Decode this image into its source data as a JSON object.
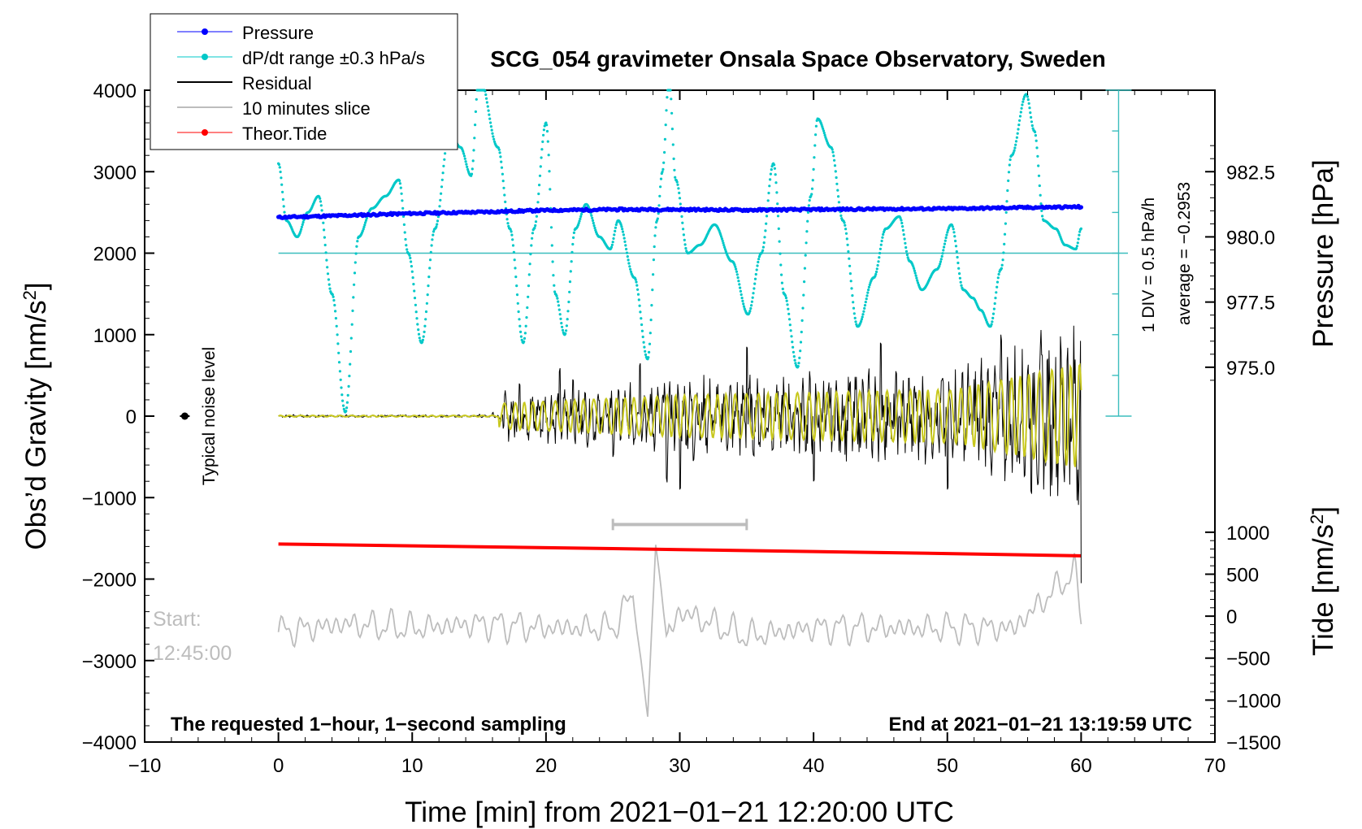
{
  "chart_data": {
    "type": "line",
    "title": "SCG_054 gravimeter Onsala Space Observatory, Sweden",
    "xlabel": "Time [min] from 2021−01−21 12:20:00 UTC",
    "ylabel_left": "Obs’d Gravity [nm/s",
    "ylabel_left_sup": "2",
    "ylabel_left_end": "]",
    "ylabel_right_pressure": "Pressure [hPa]",
    "ylabel_right_tide": "Tide [nm/s",
    "ylabel_right_tide_sup": "2",
    "ylabel_right_tide_end": "]",
    "xlim": [
      -10,
      70
    ],
    "ylim": [
      -4000,
      4000
    ],
    "x_ticks": [
      "−10",
      "0",
      "10",
      "20",
      "30",
      "40",
      "50",
      "60",
      "70"
    ],
    "x_tick_values": [
      -10,
      0,
      10,
      20,
      30,
      40,
      50,
      60,
      70
    ],
    "y_ticks": [
      "4000",
      "3000",
      "2000",
      "1000",
      "0",
      "−1000",
      "−2000",
      "−3000",
      "−4000"
    ],
    "y_tick_values": [
      4000,
      3000,
      2000,
      1000,
      0,
      -1000,
      -2000,
      -3000,
      -4000
    ],
    "pressure_ticks": [
      "982.5",
      "980.0",
      "977.5",
      "975.0"
    ],
    "pressure_tick_values": [
      982.5,
      980.0,
      977.5,
      975.0
    ],
    "pressure_scale": {
      "pressure_at_gravity_3000": 982.5,
      "gravity_per_hPa": 320
    },
    "tide_ticks": [
      "1000",
      "500",
      "0",
      "−500",
      "−1000",
      "−1500"
    ],
    "tide_tick_values": [
      1000,
      500,
      0,
      -500,
      -1000,
      -1500
    ],
    "tide_scale": {
      "tide_at_gravity_minus4000": -1500,
      "gravity_per_tide_unit": 1.03
    },
    "legend": [
      {
        "label": "Pressure",
        "color": "#0000ff",
        "marker": true
      },
      {
        "label": "dP/dt range ±0.3 hPa/s",
        "color": "#00c8c8",
        "marker": true
      },
      {
        "label": "Residual",
        "color": "#000000",
        "marker": false
      },
      {
        "label": "10 minutes slice",
        "color": "#bdbdbd",
        "marker": false
      },
      {
        "label": "Theor.Tide",
        "color": "#ff0000",
        "marker": true
      }
    ],
    "legend_position": "top-left",
    "annotations": {
      "noise_label": "Typical noise level",
      "div_label": "1 DIV = 0.5 hPa/h",
      "avg_label": "average = −0.2953",
      "start_label": "Start:",
      "start_time": "12:45:00",
      "sampling_note": "The requested 1−hour, 1−second sampling",
      "end_note": "End at 2021−01−21 13:19:59 UTC"
    },
    "colors": {
      "pressure": "#0000ff",
      "dpdt": "#00c8c8",
      "residual": "#000000",
      "filtered": "#c8c81e",
      "slice": "#bdbdbd",
      "tide": "#ff0000",
      "dpdt_reference": "#3cbebe"
    },
    "dpdt_reference_level": 2000,
    "div_scale_gravity_top": 4000,
    "div_scale_gravity_bottom": 0,
    "div_scale_steps": 8,
    "slice_window": [
      25,
      35
    ],
    "noise_marker": {
      "x": -7,
      "y": 0
    },
    "series": [
      {
        "name": "Pressure",
        "x": [
          0,
          5,
          10,
          15,
          20,
          25,
          30,
          35,
          40,
          45,
          50,
          55,
          60
        ],
        "values": [
          980.75,
          980.82,
          980.9,
          980.95,
          981.02,
          981.05,
          981.05,
          981.03,
          981.05,
          981.07,
          981.08,
          981.12,
          981.15
        ],
        "unit": "hPa"
      },
      {
        "name": "dP/dt",
        "x": [
          0,
          0.6,
          1.4,
          2.2,
          3.0,
          4.0,
          5.0,
          6.0,
          7.0,
          8.0,
          9.0,
          9.7,
          10.7,
          11.7,
          12.8,
          13.6,
          14.4,
          15.0,
          16.4,
          17.3,
          18.3,
          19.1,
          20.0,
          20.7,
          21.4,
          22.2,
          23.0,
          24.0,
          24.8,
          25.4,
          26.6,
          27.6,
          28.3,
          28.7,
          29.2,
          29.7,
          30.6,
          31.5,
          32.6,
          33.9,
          35.1,
          36.1,
          37.0,
          37.8,
          38.8,
          39.8,
          40.3,
          41.3,
          42.2,
          43.3,
          44.5,
          45.4,
          46.4,
          47.2,
          48.1,
          49.2,
          50.3,
          51.2,
          51.9,
          52.5,
          53.2,
          54.0,
          54.8,
          55.9,
          56.5,
          57.2,
          58.1,
          58.8,
          59.6,
          60.0
        ],
        "values": [
          3100,
          2400,
          2200,
          2500,
          2700,
          1500,
          50,
          2200,
          2550,
          2700,
          2900,
          2000,
          900,
          2300,
          3500,
          3300,
          2950,
          4200,
          3300,
          2300,
          900,
          2300,
          3600,
          1500,
          1000,
          2300,
          2600,
          2200,
          2050,
          2400,
          1700,
          700,
          2400,
          3000,
          4150,
          2900,
          2000,
          2100,
          2350,
          1900,
          1250,
          2000,
          3100,
          1500,
          600,
          2700,
          3650,
          3300,
          2400,
          1100,
          1700,
          2300,
          2450,
          1900,
          1550,
          1800,
          2350,
          1550,
          1450,
          1300,
          1100,
          1800,
          3200,
          3950,
          3500,
          2400,
          2300,
          2100,
          2050,
          2300
        ],
        "unit": "nm/s^2 plot units"
      },
      {
        "name": "Residual",
        "x": [
          0,
          10,
          15,
          16,
          17,
          17.5,
          18,
          20,
          21.3,
          21.7,
          22,
          25,
          27.5,
          29.4,
          29.6,
          30,
          35,
          40,
          45,
          50,
          54,
          55.5,
          56.5,
          57.5,
          58,
          59,
          60
        ],
        "values": [
          0,
          5,
          20,
          40,
          150,
          -450,
          400,
          -300,
          800,
          -600,
          450,
          -500,
          900,
          -1200,
          1250,
          -900,
          850,
          -800,
          900,
          -900,
          1000,
          -1200,
          1150,
          -1750,
          1000,
          1100,
          -2050
        ],
        "unit": "nm/s^2"
      },
      {
        "name": "Theor.Tide",
        "x": [
          0,
          10,
          20,
          30,
          40,
          50,
          60
        ],
        "values": [
          -1570,
          -1592,
          -1615,
          -1638,
          -1662,
          -1687,
          -1715
        ],
        "unit": "nm/s^2 plot units"
      },
      {
        "name": "10 minutes slice",
        "x": [
          0,
          5,
          10,
          15,
          20,
          25,
          26.5,
          27.6,
          28.2,
          29,
          30,
          35,
          40,
          45,
          50,
          55,
          59.5,
          60
        ],
        "values": [
          -2650,
          -2550,
          -2600,
          -2550,
          -2600,
          -2600,
          -2200,
          -3700,
          -1550,
          -2700,
          -2400,
          -2700,
          -2600,
          -2600,
          -2600,
          -2600,
          -1900,
          -2450
        ],
        "unit": "nm/s^2 plot units"
      }
    ]
  }
}
